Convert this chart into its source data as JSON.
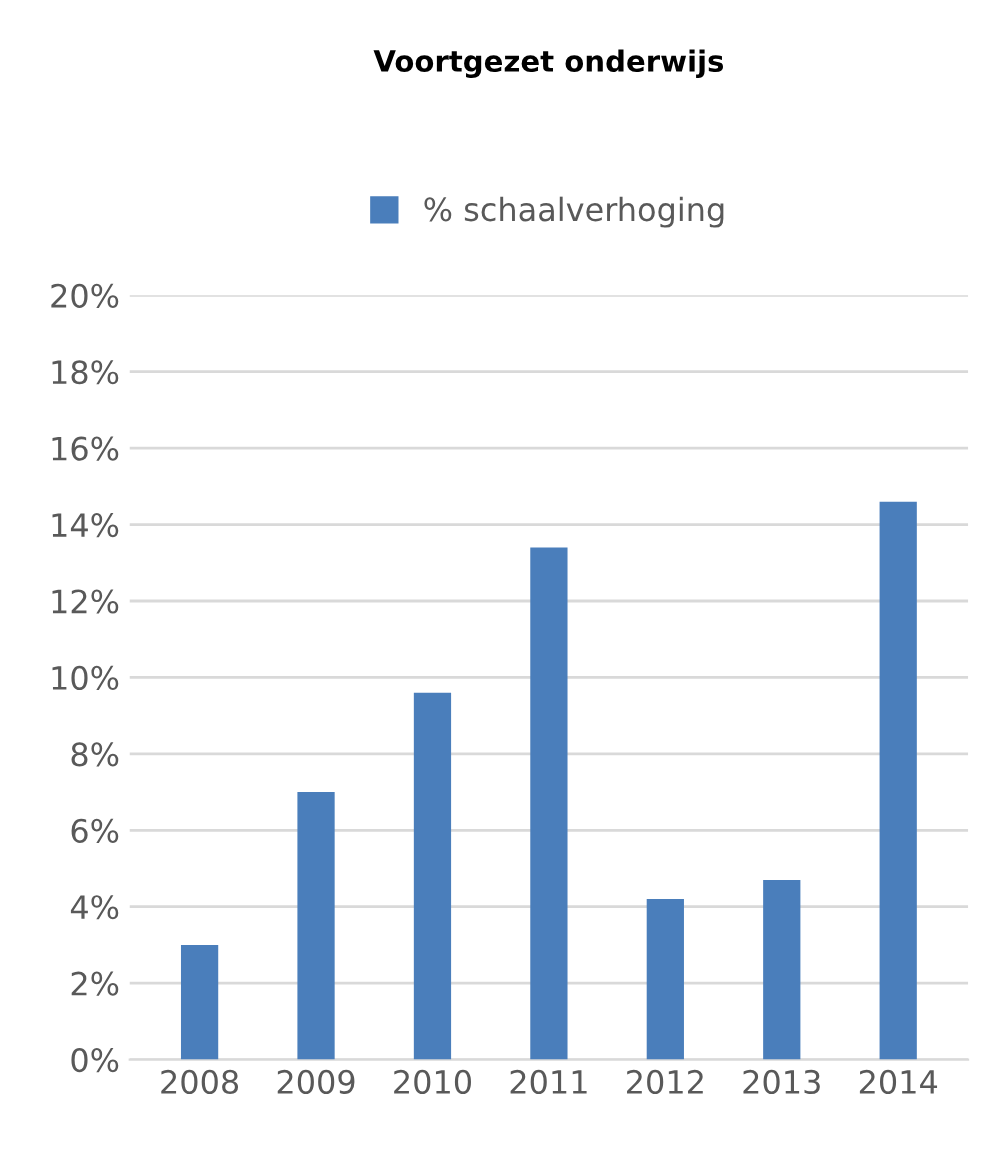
{
  "chart_data": {
    "type": "bar",
    "title": "Voortgezet onderwijs",
    "categories": [
      "2008",
      "2009",
      "2010",
      "2011",
      "2012",
      "2013",
      "2014"
    ],
    "series": [
      {
        "name": "% schaalverhoging",
        "color": "#4a7ebb",
        "values": [
          3.0,
          7.0,
          9.6,
          13.4,
          4.2,
          4.7,
          14.6
        ]
      }
    ],
    "ylim": [
      0,
      20
    ],
    "yticks": [
      {
        "value": 0,
        "label": "0%"
      },
      {
        "value": 2,
        "label": "2%"
      },
      {
        "value": 4,
        "label": "4%"
      },
      {
        "value": 6,
        "label": "6%"
      },
      {
        "value": 8,
        "label": "8%"
      },
      {
        "value": 10,
        "label": "10%"
      },
      {
        "value": 12,
        "label": "12%"
      },
      {
        "value": 14,
        "label": "14%"
      },
      {
        "value": 16,
        "label": "16%"
      },
      {
        "value": 18,
        "label": "18%"
      },
      {
        "value": 20,
        "label": "20%"
      }
    ],
    "grid": "y",
    "legend": "top"
  }
}
